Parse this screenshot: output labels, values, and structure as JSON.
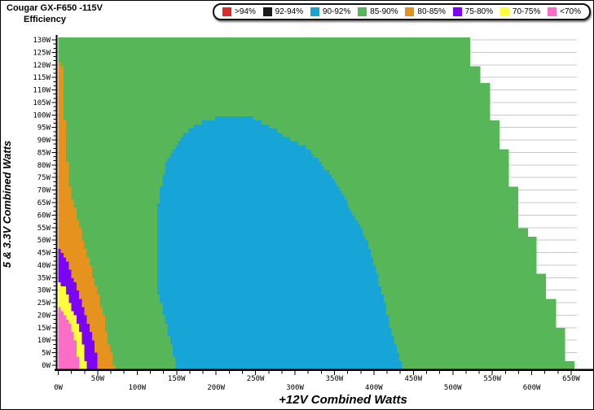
{
  "header": {
    "title": "Cougar GX-F650 -115V",
    "subtitle": "Efficiency"
  },
  "legend": {
    "items": [
      {
        "label": ">94%",
        "color": "#e02a24"
      },
      {
        "label": "92-94%",
        "color": "#1a1a1a"
      },
      {
        "label": "90-92%",
        "color": "#17a5d8"
      },
      {
        "label": "85-90%",
        "color": "#57b657"
      },
      {
        "label": "80-85%",
        "color": "#e6921e"
      },
      {
        "label": "75-80%",
        "color": "#7c04f4"
      },
      {
        "label": "70-75%",
        "color": "#fdfd3d"
      },
      {
        "label": "<70%",
        "color": "#fb6ec6"
      }
    ]
  },
  "chart_data": {
    "type": "heatmap",
    "title": "Cougar GX-F650 -115V Efficiency",
    "xlabel": "+12V Combined Watts",
    "ylabel": "5 & 3.3V Combined Watts",
    "xlim": [
      0,
      657
    ],
    "ylim": [
      0,
      130.5
    ],
    "grid": "horizontal gridlines every 5W, light gray, visible outside data region",
    "legend_position": "top",
    "x_tick_labels": [
      "0W",
      "50W",
      "100W",
      "150W",
      "200W",
      "250W",
      "300W",
      "350W",
      "400W",
      "450W",
      "500W",
      "550W",
      "600W",
      "650W"
    ],
    "x_major_step_w": 50,
    "x_minor_step_w": 16.6667,
    "y_tick_labels": [
      "0W",
      "5W",
      "10W",
      "15W",
      "20W",
      "25W",
      "30W",
      "35W",
      "40W",
      "45W",
      "50W",
      "55W",
      "60W",
      "65W",
      "70W",
      "75W",
      "80W",
      "85W",
      "90W",
      "95W",
      "100W",
      "105W",
      "110W",
      "115W",
      "120W",
      "125W",
      "130W"
    ],
    "y_major_step_w": 5,
    "y_minor_step_w": 1.6667,
    "colors": {
      "pink": "#fb6ec6",
      "yellow": "#fdfd3d",
      "purple": "#7c04f4",
      "orange": "#e6921e",
      "green": "#57b657",
      "blue": "#17a5d8",
      "red": "#e02a24",
      "black": "#1a1a1a",
      "gridline": "#c9c9c9"
    },
    "band_meaning": {
      "red": ">94%",
      "black": "92-94%",
      "blue": "90-92%",
      "green": "85-90%",
      "orange": "80-85%",
      "purple": "75-80%",
      "yellow": "70-75%",
      "pink": "<70%"
    },
    "region_boundaries_w": {
      "comment": "pairs are [5V_watts, 12V_watts]; right boundary of each band measured from the plot",
      "pink_right": [
        [
          0,
          26
        ],
        [
          5,
          24
        ],
        [
          10,
          21
        ],
        [
          15,
          16
        ],
        [
          20,
          9
        ],
        [
          24,
          0
        ]
      ],
      "yellow_right": [
        [
          0,
          36
        ],
        [
          9,
          31
        ],
        [
          15,
          27
        ],
        [
          23,
          17
        ],
        [
          31,
          8
        ],
        [
          33,
          0
        ]
      ],
      "purple_right": [
        [
          0,
          50
        ],
        [
          8,
          46
        ],
        [
          15,
          40
        ],
        [
          23,
          32
        ],
        [
          32,
          22
        ],
        [
          41,
          12
        ],
        [
          48,
          0
        ]
      ],
      "orange_right": [
        [
          0,
          71
        ],
        [
          10,
          63
        ],
        [
          21,
          57
        ],
        [
          31,
          48
        ],
        [
          42,
          39
        ],
        [
          53,
          29
        ],
        [
          61,
          23
        ],
        [
          69,
          16
        ],
        [
          77,
          13
        ],
        [
          86,
          10
        ],
        [
          99,
          8
        ],
        [
          112,
          6
        ],
        [
          119,
          5
        ],
        [
          121,
          0
        ]
      ],
      "blue_left": [
        [
          0,
          150
        ],
        [
          6,
          145
        ],
        [
          16,
          137
        ],
        [
          29,
          127
        ],
        [
          40,
          124
        ],
        [
          50,
          124
        ],
        [
          60,
          125
        ],
        [
          72,
          131
        ],
        [
          80,
          136
        ],
        [
          84,
          143
        ],
        [
          88,
          149
        ],
        [
          91,
          156
        ],
        [
          94,
          166
        ],
        [
          97,
          180
        ],
        [
          99,
          200
        ],
        [
          100,
          215
        ]
      ],
      "blue_right": [
        [
          0,
          437
        ],
        [
          5,
          430
        ],
        [
          11,
          424
        ],
        [
          19,
          418
        ],
        [
          27,
          412
        ],
        [
          35,
          405
        ],
        [
          43,
          397
        ],
        [
          52,
          388
        ],
        [
          60,
          375
        ],
        [
          68,
          360
        ],
        [
          76,
          345
        ],
        [
          82,
          330
        ],
        [
          86,
          318
        ],
        [
          90,
          295
        ],
        [
          93,
          280
        ],
        [
          96,
          262
        ],
        [
          99,
          246
        ],
        [
          100,
          243
        ]
      ]
    },
    "max_power_steps_w": [
      [
        0,
        2,
        654
      ],
      [
        2,
        15,
        642
      ],
      [
        15,
        27,
        631
      ],
      [
        27,
        37,
        618
      ],
      [
        37,
        52,
        606
      ],
      [
        52,
        55,
        595
      ],
      [
        55,
        71,
        583
      ],
      [
        71,
        87,
        571
      ],
      [
        87,
        97,
        559
      ],
      [
        97,
        112,
        547
      ],
      [
        112,
        120,
        535
      ],
      [
        120,
        130.5,
        522
      ]
    ]
  }
}
